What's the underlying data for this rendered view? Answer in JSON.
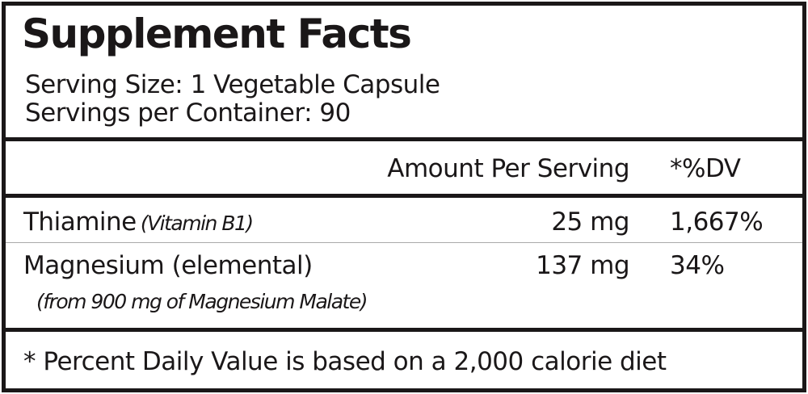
{
  "title": "Supplement Facts",
  "serving_size": "Serving Size: 1 Vegetable Capsule",
  "servings_per_container": "Servings per Container: 90",
  "header": {
    "amount": "Amount Per Serving",
    "dv": "*%DV"
  },
  "rows": [
    {
      "name": "Thiamine",
      "note": "(Vitamin B1)",
      "amount": "25 mg",
      "dv": "1,667%"
    },
    {
      "name": "Magnesium (elemental)",
      "note": "(from 900 mg of Magnesium Malate)",
      "amount": "137 mg",
      "dv": "34%"
    }
  ],
  "footnote": "* Percent Daily Value is based on a 2,000 calorie diet"
}
